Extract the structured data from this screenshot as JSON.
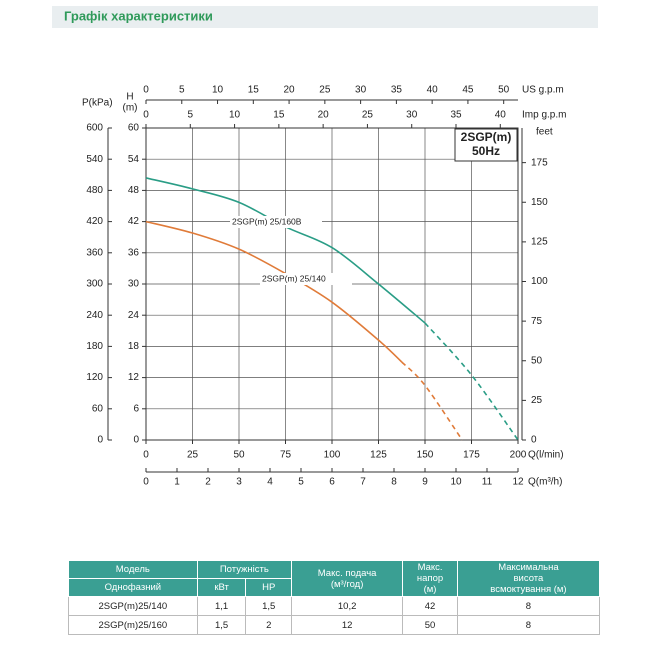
{
  "header": {
    "title": "Графік характеристики"
  },
  "chart_data": {
    "type": "line",
    "xlabel": "Q(l/min)",
    "xlim": [
      0,
      200
    ],
    "xticks": [
      0,
      25,
      50,
      75,
      100,
      125,
      150,
      175,
      200
    ],
    "x2label": "Q(m³/h)",
    "x2lim": [
      0,
      12
    ],
    "x2ticks": [
      0,
      1,
      2,
      3,
      4,
      5,
      6,
      7,
      8,
      9,
      10,
      11,
      12
    ],
    "us_label": "US g.p.m",
    "us_lim": [
      0,
      52
    ],
    "us_ticks": [
      0,
      5,
      10,
      15,
      20,
      25,
      30,
      35,
      40,
      45,
      50
    ],
    "imp_label": "Imp g.p.m",
    "imp_lim": [
      0,
      42
    ],
    "imp_ticks": [
      0,
      5,
      10,
      15,
      20,
      25,
      30,
      35,
      40
    ],
    "ylabel": [
      "H",
      "(m)"
    ],
    "ylim": [
      0,
      60
    ],
    "yticks": [
      0,
      6,
      12,
      18,
      24,
      30,
      36,
      42,
      48,
      54,
      60
    ],
    "p_label": "P(kPa)",
    "p_lim": [
      0,
      600
    ],
    "p_ticks": [
      0,
      60,
      120,
      180,
      240,
      300,
      360,
      420,
      480,
      540,
      600
    ],
    "feet_label": "feet",
    "feet_lim": [
      0,
      196.85
    ],
    "feet_ticks": [
      0,
      25,
      50,
      75,
      100,
      125,
      150,
      175
    ],
    "annotation": [
      "2SGP(m)",
      "50Hz"
    ],
    "grid": true,
    "series": [
      {
        "name": "2SGP(m) 25/160B",
        "color": "#2a9d86",
        "dashed_from_x": 150,
        "x": [
          0,
          25,
          50,
          75,
          100,
          125,
          150,
          175,
          200
        ],
        "values": [
          50.4,
          48.3,
          45.7,
          41,
          37,
          30,
          22.5,
          12.5,
          0
        ]
      },
      {
        "name": "2SGP(m) 25/140",
        "color": "#e07b39",
        "dashed_from_x": 137.5,
        "x": [
          0,
          25,
          50,
          75,
          100,
          125,
          137.5,
          150,
          170
        ],
        "values": [
          42,
          39.8,
          36.7,
          32,
          26.5,
          19.2,
          15,
          10.5,
          0
        ]
      }
    ]
  },
  "table": {
    "header_row1": [
      [
        "Модель"
      ],
      [
        "Потужність"
      ],
      [
        "Макс. подача",
        "(м³/год)"
      ],
      [
        "Макс.",
        "напор",
        "(м)"
      ],
      [
        "Максимальна",
        "висота",
        "всмоктування (м)"
      ]
    ],
    "header_row2": [
      "Однофазний",
      "кВт",
      "HP"
    ],
    "rows": [
      [
        "2SGP(m)25/140",
        "1,1",
        "1,5",
        "10,2",
        "42",
        "8"
      ],
      [
        "2SGP(m)25/160",
        "1,5",
        "2",
        "12",
        "50",
        "8"
      ]
    ]
  }
}
